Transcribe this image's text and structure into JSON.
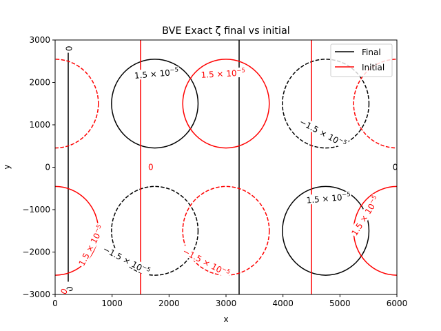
{
  "chart_data": {
    "type": "contour",
    "title": "BVE Exact ζ final vs initial",
    "xlabel": "x",
    "ylabel": "y",
    "xlim": [
      0,
      6000
    ],
    "ylim": [
      -3000,
      3000
    ],
    "xticks": [
      "0",
      "1000",
      "2000",
      "3000",
      "4000",
      "5000",
      "6000"
    ],
    "yticks": [
      "3000",
      "2000",
      "1000",
      "0",
      "−1000",
      "−2000",
      "−3000"
    ],
    "xtick_values": [
      0,
      1000,
      2000,
      3000,
      4000,
      5000,
      6000
    ],
    "ytick_values": [
      3000,
      2000,
      1000,
      0,
      -1000,
      -2000,
      -3000
    ],
    "grid": false,
    "legend_position": "top-right",
    "colors": {
      "Final": "#000000",
      "Initial": "#ff0000"
    },
    "series": [
      {
        "name": "Final",
        "contours": [
          {
            "level": "positive",
            "center": [
              1750,
              1500
            ],
            "rx": 1550,
            "ry": 1550
          },
          {
            "level": "positive",
            "center": [
              4750,
              -1500
            ],
            "rx": 1550,
            "ry": 1550
          },
          {
            "level": "negative",
            "center": [
              1750,
              -1500
            ],
            "rx": 1550,
            "ry": 1550
          },
          {
            "level": "negative",
            "center": [
              4750,
              1500
            ],
            "rx": 1550,
            "ry": 1550
          },
          {
            "level": "zero",
            "x": 230,
            "y": [
              -2700,
              2700
            ]
          },
          {
            "level": "zero",
            "x": 3230,
            "y": [
              -3000,
              3000
            ]
          },
          {
            "level": "zero",
            "y": 0,
            "x": [
              0,
              6000
            ]
          }
        ]
      },
      {
        "name": "Initial",
        "contours": [
          {
            "level": "positive",
            "center": [
              3000,
              1500
            ],
            "rx": 1550,
            "ry": 1550
          },
          {
            "level": "positive",
            "center": [
              0,
              -1500
            ],
            "rx": 1550,
            "ry": 1550
          },
          {
            "level": "positive",
            "center": [
              6000,
              -1500
            ],
            "rx": 1550,
            "ry": 1550
          },
          {
            "level": "negative",
            "center": [
              3000,
              -1500
            ],
            "rx": 1550,
            "ry": 1550
          },
          {
            "level": "negative",
            "center": [
              0,
              1500
            ],
            "rx": 1550,
            "ry": 1550
          },
          {
            "level": "negative",
            "center": [
              6000,
              1500
            ],
            "rx": 1550,
            "ry": 1550
          },
          {
            "level": "zero",
            "x": 1500,
            "y": [
              -3000,
              3000
            ]
          },
          {
            "level": "zero",
            "x": 4500,
            "y": [
              -3000,
              3000
            ]
          },
          {
            "level": "zero",
            "y": 0,
            "x": [
              0,
              6000
            ]
          }
        ]
      }
    ],
    "contour_labels": [
      {
        "series": "Final",
        "text": "1.5 × 10",
        "exp": "−5",
        "x": 1780,
        "y": 2200,
        "rotation": -5
      },
      {
        "series": "Initial",
        "text": "1.5 × 10",
        "exp": "−5",
        "x": 2950,
        "y": 2200,
        "rotation": -3
      },
      {
        "series": "Final",
        "text": "−1.5 × 10",
        "exp": "−5",
        "x": 4700,
        "y": 800,
        "rotation": 28
      },
      {
        "series": "Final",
        "text": "1.5 × 10",
        "exp": "−5",
        "x": 4800,
        "y": -740,
        "rotation": -5
      },
      {
        "series": "Initial",
        "text": "1.5 × 10",
        "exp": "−5",
        "x": 5450,
        "y": -1150,
        "rotation": -58
      },
      {
        "series": "Final",
        "text": "−1.5 × 10",
        "exp": "−5",
        "x": 1250,
        "y": -2200,
        "rotation": 28
      },
      {
        "series": "Initial",
        "text": "−1.5 × 10",
        "exp": "−5",
        "x": 2650,
        "y": -2250,
        "rotation": 28
      },
      {
        "series": "Initial",
        "text": "1.5 × 10",
        "exp": "−5",
        "x": 640,
        "y": -1850,
        "rotation": -62
      },
      {
        "series": "Final",
        "text": "0",
        "exp": "",
        "x": 250,
        "y": 2800,
        "rotation": -90
      },
      {
        "series": "Final",
        "text": "0",
        "exp": "",
        "x": 260,
        "y": -2870,
        "rotation": -90
      },
      {
        "series": "Initial",
        "text": "0",
        "exp": "",
        "x": 160,
        "y": -2930,
        "rotation": -60
      },
      {
        "series": "Initial",
        "text": "0",
        "exp": "",
        "x": 1680,
        "y": 0,
        "rotation": 0
      },
      {
        "series": "Final",
        "text": "0",
        "exp": "",
        "x": 5970,
        "y": 0,
        "rotation": 0
      }
    ]
  }
}
